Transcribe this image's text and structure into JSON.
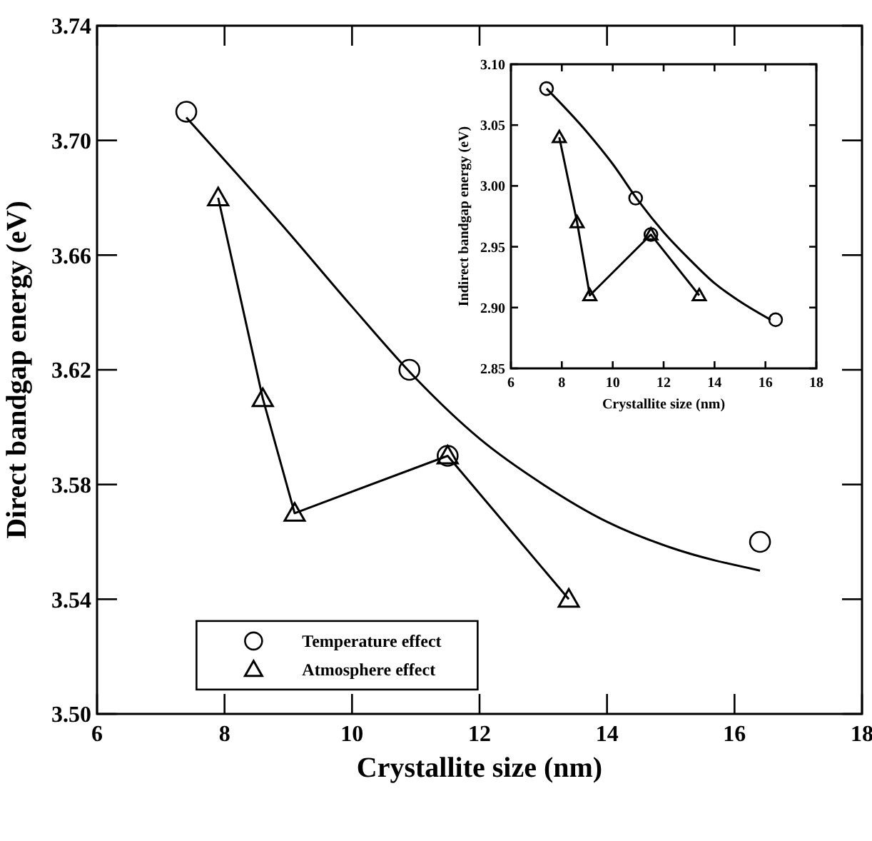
{
  "chart_data": [
    {
      "type": "line",
      "xlabel": "Crystallite size (nm)",
      "ylabel": "Direct bandgap energy (eV)",
      "xlim": [
        6,
        18
      ],
      "ylim": [
        3.5,
        3.74
      ],
      "xticks": [
        6,
        8,
        10,
        12,
        14,
        16,
        18
      ],
      "yticks": [
        {
          "value": 3.5,
          "label": "3.50"
        },
        {
          "value": 3.54,
          "label": "3.54"
        },
        {
          "value": 3.58,
          "label": "3.58"
        },
        {
          "value": 3.62,
          "label": "3.62"
        },
        {
          "value": 3.66,
          "label": "3.66"
        },
        {
          "value": 3.7,
          "label": "3.70"
        },
        {
          "value": 3.74,
          "label": "3.74"
        }
      ],
      "legend": "bottom left",
      "grid": false,
      "series": [
        {
          "type": "scatter",
          "name": "Temperature effect",
          "marker": "circle",
          "color": "#000000",
          "x": [
            7.4,
            10.9,
            11.5,
            16.4
          ],
          "values": [
            3.71,
            3.62,
            3.59,
            3.56
          ]
        },
        {
          "marker": "none",
          "color": "#000000",
          "x": [
            7.4,
            9,
            10,
            11,
            12,
            13,
            14,
            15,
            16.4
          ],
          "values": [
            3.708,
            3.668,
            3.642,
            3.617,
            3.596,
            3.58,
            3.567,
            3.558,
            3.55
          ]
        },
        {
          "name": "Atmosphere effect",
          "marker": "triangle",
          "color": "#000000",
          "x": [
            7.9,
            8.6,
            9.1,
            11.5,
            13.4
          ],
          "values": [
            3.68,
            3.61,
            3.57,
            3.59,
            3.54
          ]
        }
      ]
    },
    {
      "type": "line",
      "xlabel": "Crystallite size (nm)",
      "ylabel": "Indirect bandgap energy (eV)",
      "xlim": [
        6,
        18
      ],
      "ylim": [
        2.85,
        3.1
      ],
      "xticks": [
        6,
        8,
        10,
        12,
        14,
        16,
        18
      ],
      "yticks": [
        {
          "value": 2.85,
          "label": "2.85"
        },
        {
          "value": 2.9,
          "label": "2.90"
        },
        {
          "value": 2.95,
          "label": "2.95"
        },
        {
          "value": 3.0,
          "label": "3.00"
        },
        {
          "value": 3.05,
          "label": "3.05"
        },
        {
          "value": 3.1,
          "label": "3.10"
        }
      ],
      "grid": false,
      "series": [
        {
          "type": "scatter",
          "marker": "circle",
          "color": "#000000",
          "x": [
            7.4,
            10.9,
            11.5,
            16.4
          ],
          "values": [
            3.08,
            2.99,
            2.96,
            2.89
          ]
        },
        {
          "marker": "none",
          "color": "#000000",
          "x": [
            7.4,
            9,
            10,
            11,
            12,
            13,
            14,
            15,
            16.2
          ],
          "values": [
            3.08,
            3.044,
            3.018,
            2.988,
            2.962,
            2.94,
            2.92,
            2.905,
            2.89
          ]
        },
        {
          "marker": "triangle",
          "color": "#000000",
          "x": [
            7.9,
            8.6,
            9.1,
            11.5,
            13.4
          ],
          "values": [
            3.04,
            2.97,
            2.91,
            2.96,
            2.91
          ]
        }
      ]
    }
  ]
}
